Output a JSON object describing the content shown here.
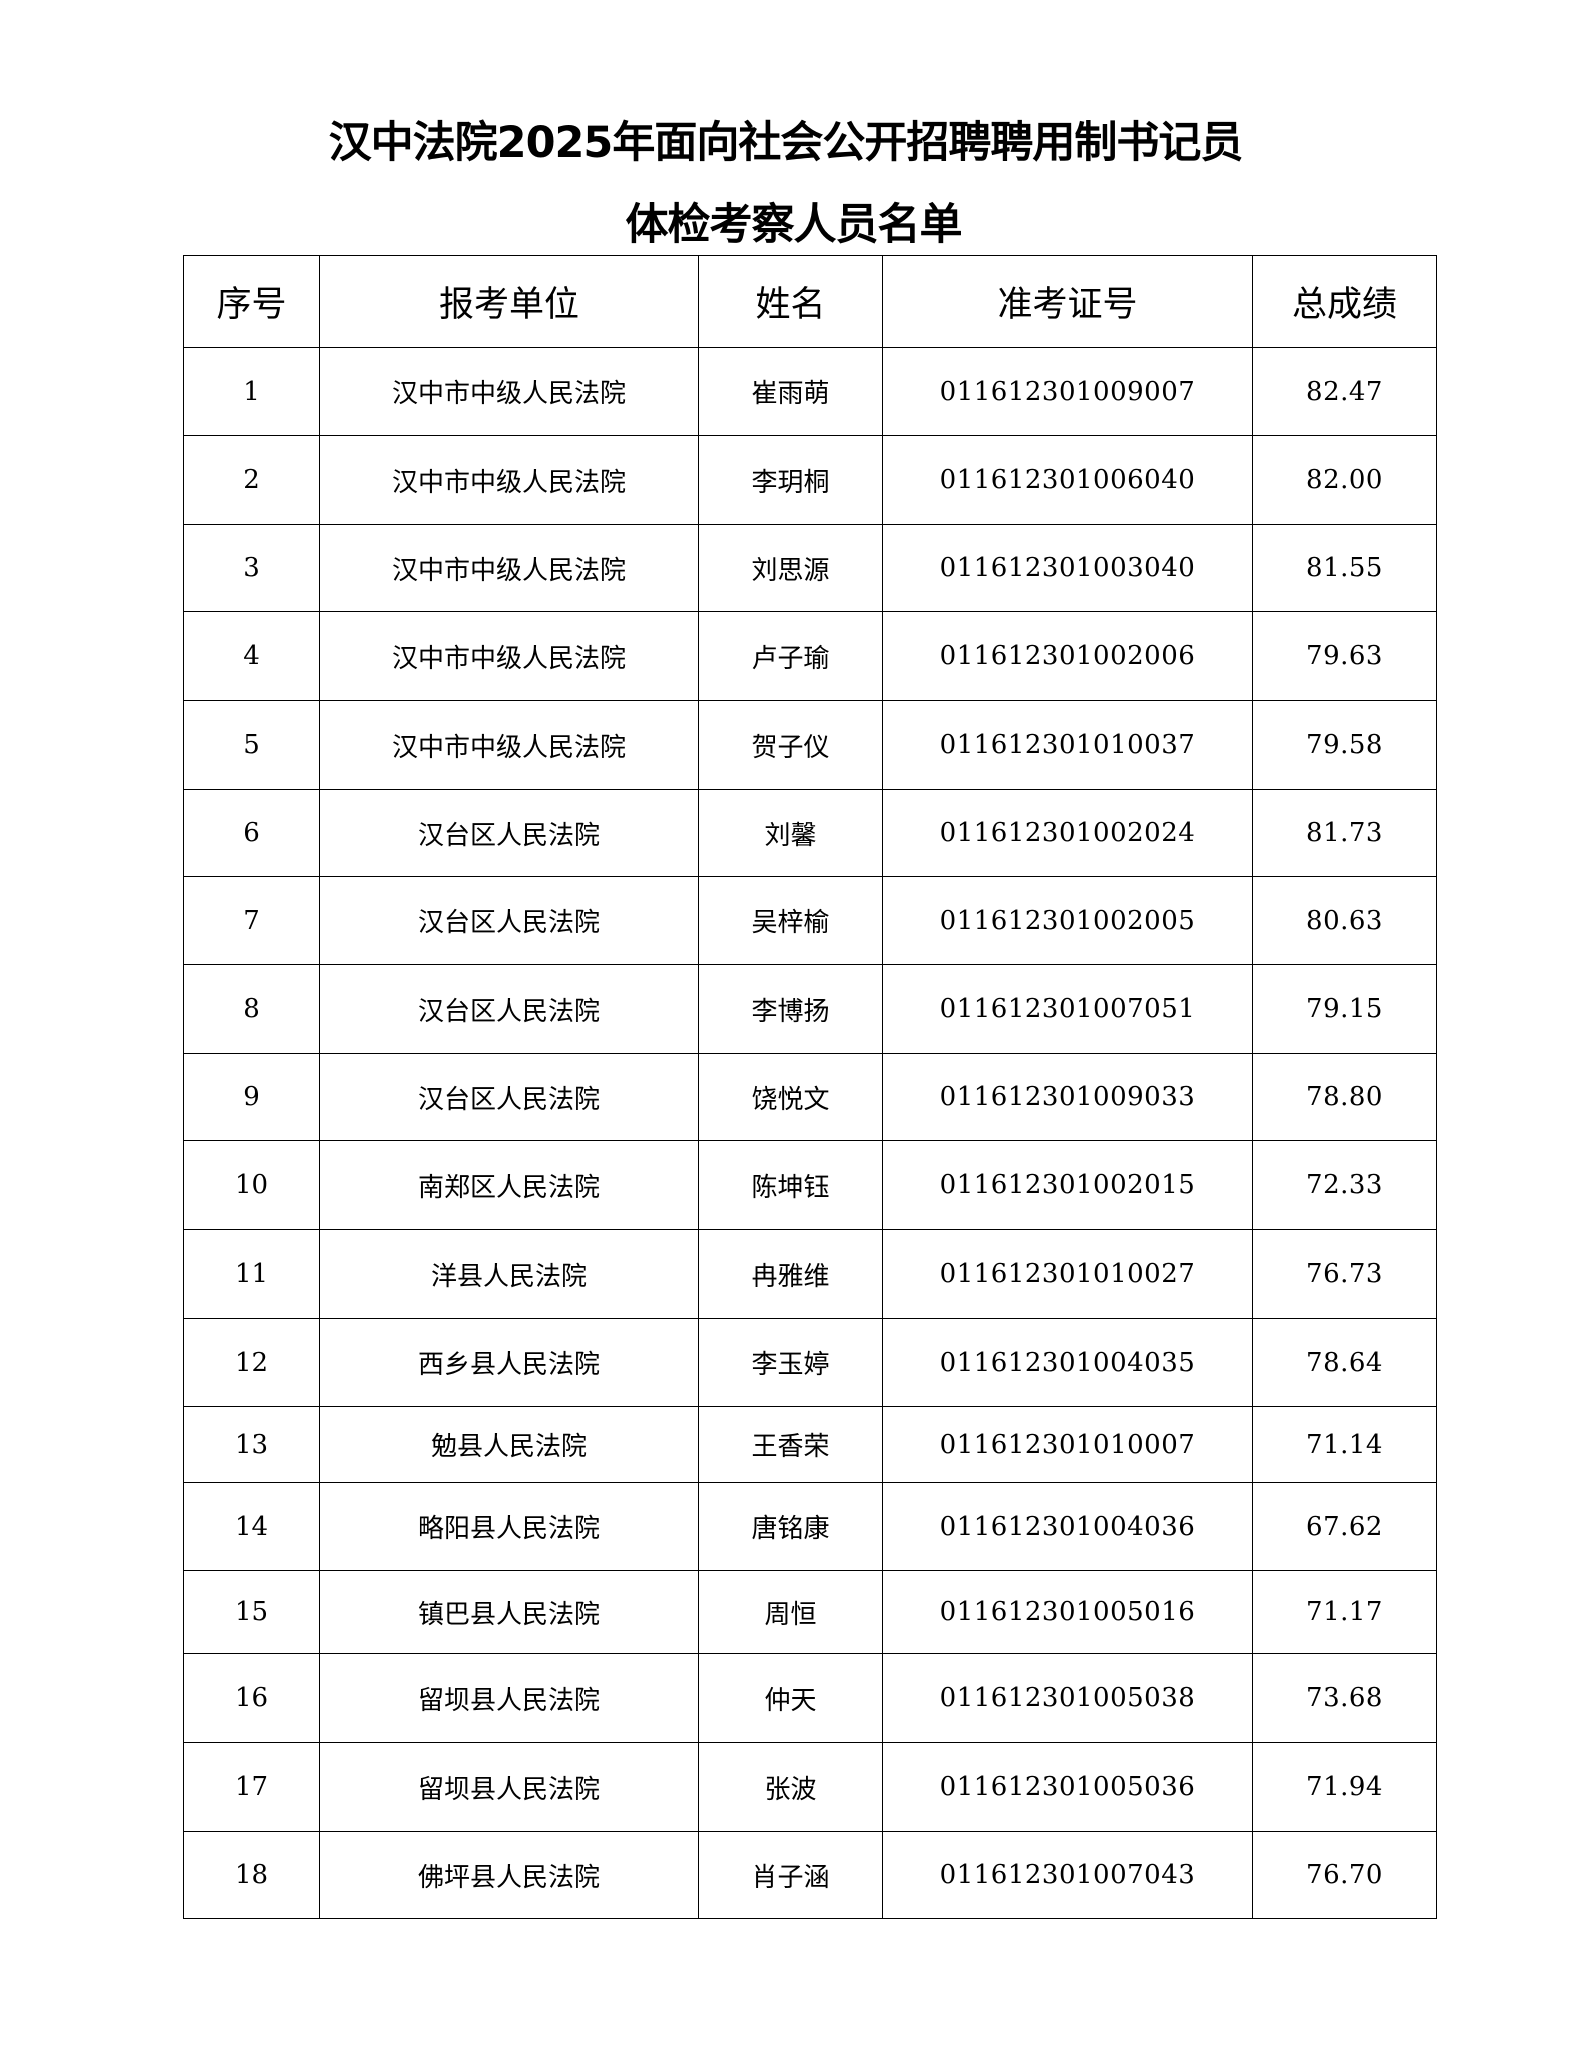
{
  "title": {
    "line1": "汉中法院2025年面向社会公开招聘聘用制书记员",
    "line2": "体检考察人员名单"
  },
  "table": {
    "headers": [
      "序号",
      "报考单位",
      "姓名",
      "准考证号",
      "总成绩"
    ],
    "rows": [
      [
        "1",
        "汉中市中级人民法院",
        "崔雨萌",
        "011612301009007",
        "82.47"
      ],
      [
        "2",
        "汉中市中级人民法院",
        "李玥桐",
        "011612301006040",
        "82.00"
      ],
      [
        "3",
        "汉中市中级人民法院",
        "刘思源",
        "011612301003040",
        "81.55"
      ],
      [
        "4",
        "汉中市中级人民法院",
        "卢子瑜",
        "011612301002006",
        "79.63"
      ],
      [
        "5",
        "汉中市中级人民法院",
        "贺子仪",
        "011612301010037",
        "79.58"
      ],
      [
        "6",
        "汉台区人民法院",
        "刘馨",
        "011612301002024",
        "81.73"
      ],
      [
        "7",
        "汉台区人民法院",
        "吴梓榆",
        "011612301002005",
        "80.63"
      ],
      [
        "8",
        "汉台区人民法院",
        "李博扬",
        "011612301007051",
        "79.15"
      ],
      [
        "9",
        "汉台区人民法院",
        "饶悦文",
        "011612301009033",
        "78.80"
      ],
      [
        "10",
        "南郑区人民法院",
        "陈坤钰",
        "011612301002015",
        "72.33"
      ],
      [
        "11",
        "洋县人民法院",
        "冉雅维",
        "011612301010027",
        "76.73"
      ],
      [
        "12",
        "西乡县人民法院",
        "李玉婷",
        "011612301004035",
        "78.64"
      ],
      [
        "13",
        "勉县人民法院",
        "王香荣",
        "011612301010007",
        "71.14"
      ],
      [
        "14",
        "略阳县人民法院",
        "唐铭康",
        "011612301004036",
        "67.62"
      ],
      [
        "15",
        "镇巴县人民法院",
        "周恒",
        "011612301005016",
        "71.17"
      ],
      [
        "16",
        "留坝县人民法院",
        "仲天",
        "011612301005038",
        "73.68"
      ],
      [
        "17",
        "留坝县人民法院",
        "张波",
        "011612301005036",
        "71.94"
      ],
      [
        "18",
        "佛坪县人民法院",
        "肖子涵",
        "011612301007043",
        "76.70"
      ]
    ]
  }
}
